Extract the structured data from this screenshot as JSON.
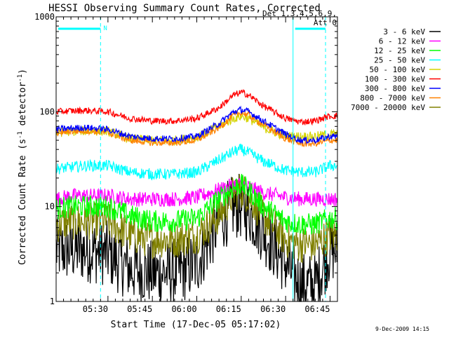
{
  "chart_data": {
    "type": "line",
    "title": "HESSI Observing Summary Count Rates, Corrected",
    "xlabel": "Start Time (17-Dec-05 05:17:02)",
    "ylabel_main": "Corrected Count Rate (s",
    "ylabel_sup1": "-1",
    "ylabel_mid": " detector",
    "ylabel_sup2": "-1",
    "ylabel_end": ")",
    "y_scale": "log",
    "ylim": [
      1,
      1000
    ],
    "xlim_minutes": [
      0,
      38
    ],
    "x_tick_labels": [
      {
        "label": "05:30",
        "minute": 7
      },
      {
        "label": "05:45",
        "minute": 13
      },
      {
        "label": "06:00",
        "minute": 19
      },
      {
        "label": "06:15",
        "minute": 25
      },
      {
        "label": "06:30",
        "minute": 31
      },
      {
        "label": "06:45",
        "minute": 37
      }
    ],
    "y_tick_labels": [
      {
        "label": "1",
        "value": 1
      },
      {
        "label": "10",
        "value": 10
      },
      {
        "label": "100",
        "value": 100
      },
      {
        "label": "1000",
        "value": 1000
      }
    ],
    "legend_header": [
      "Det 1,3,4,5,6,9,",
      "Att 0"
    ],
    "legend_placement": "right",
    "date_stamp": "9-Dec-2009 14:15",
    "night_marker": "N",
    "x": [
      0,
      2,
      4,
      7,
      10,
      13,
      16,
      19,
      22,
      24,
      25,
      26,
      28,
      31,
      33,
      35,
      37
    ],
    "series": [
      {
        "name": "3 - 6 keV",
        "color": "#000000",
        "noise": 0.35,
        "values": [
          3.5,
          3.5,
          3.5,
          3.2,
          2.2,
          2.0,
          2.0,
          2.5,
          7,
          10,
          10,
          9,
          5.5,
          2.5,
          1.5,
          1.5,
          3.5
        ]
      },
      {
        "name": "6 - 12 keV",
        "color": "#ff00ff",
        "noise": 0.08,
        "values": [
          12,
          13,
          13,
          13,
          12,
          12,
          12,
          12.5,
          15,
          17,
          17,
          16,
          14,
          12.5,
          12,
          12,
          12
        ]
      },
      {
        "name": "12 - 25 keV",
        "color": "#00ff00",
        "noise": 0.12,
        "values": [
          9.5,
          10,
          10,
          10,
          8,
          7,
          7,
          7.5,
          12,
          16,
          17,
          15,
          10,
          7,
          6.5,
          6.5,
          7.5
        ]
      },
      {
        "name": "25 - 50 keV",
        "color": "#00ffff",
        "noise": 0.06,
        "values": [
          25,
          26,
          27,
          27,
          23,
          22,
          22,
          23,
          31,
          38,
          40,
          37,
          30,
          24,
          23,
          23,
          27
        ]
      },
      {
        "name": "50 - 100 keV",
        "color": "#d4d400",
        "noise": 0.05,
        "values": [
          60,
          62,
          63,
          62,
          52,
          50,
          50,
          54,
          70,
          85,
          90,
          85,
          68,
          55,
          55,
          55,
          58
        ]
      },
      {
        "name": "100 - 300 keV",
        "color": "#ff0000",
        "noise": 0.035,
        "values": [
          100,
          102,
          103,
          100,
          85,
          80,
          80,
          85,
          110,
          150,
          160,
          150,
          115,
          85,
          78,
          80,
          90
        ]
      },
      {
        "name": "300 - 800 keV",
        "color": "#0000ff",
        "noise": 0.035,
        "values": [
          65,
          67,
          68,
          65,
          55,
          52,
          52,
          55,
          75,
          100,
          105,
          100,
          80,
          58,
          50,
          50,
          55
        ]
      },
      {
        "name": "800 - 7000 keV",
        "color": "#ff8000",
        "noise": 0.035,
        "values": [
          60,
          62,
          63,
          60,
          50,
          47,
          47,
          50,
          68,
          92,
          98,
          92,
          73,
          52,
          46,
          46,
          50
        ]
      },
      {
        "name": "7000 - 20000 keV",
        "color": "#808000",
        "noise": 0.2,
        "values": [
          6.5,
          7,
          7,
          7,
          5,
          4.5,
          4.5,
          5,
          8,
          14,
          15,
          13,
          8,
          4.5,
          4,
          4,
          5
        ]
      }
    ],
    "annotations": {
      "saa_bars": [
        {
          "start": 0,
          "end": 6
        },
        {
          "start": 32,
          "end": 38
        }
      ],
      "dashed_markers": [
        6,
        38
      ],
      "solid_markers": [
        0,
        32
      ]
    }
  }
}
